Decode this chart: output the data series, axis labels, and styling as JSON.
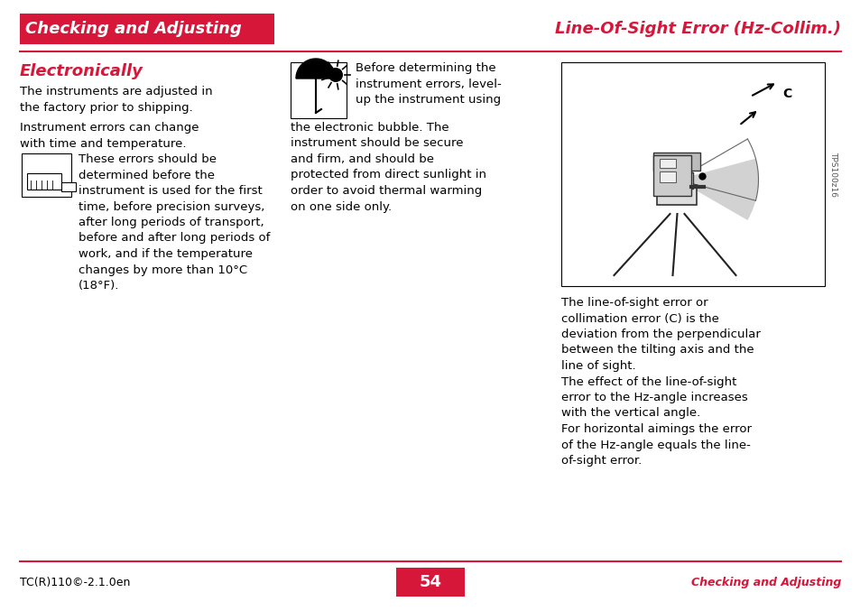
{
  "bg_color": "#ffffff",
  "header_bg_color": "#d6173a",
  "header_text_color": "#ffffff",
  "header_left_text": "Checking and Adjusting",
  "header_right_text": "Line-Of-Sight Error (Hz-Collim.)",
  "header_right_color": "#d6173a",
  "footer_left_text": "TC(R)110©-2.1.0en",
  "footer_center_text": "54",
  "footer_center_bg": "#d6173a",
  "footer_center_color": "#ffffff",
  "footer_right_text": "Checking and Adjusting",
  "footer_right_color": "#d6173a",
  "section_title": "Electronically",
  "section_title_color": "#d6173a",
  "separator_color": "#d6173a",
  "left_body1": "The instruments are adjusted in\nthe factory prior to shipping.",
  "left_body2": "Instrument errors can change\nwith time and temperature.",
  "left_note": "These errors should be\ndetermined before the\ninstrument is used for the first\ntime, before precision surveys,\nafter long periods of transport,\nbefore and after long periods of\nwork, and if the temperature\nchanges by more than 10°C\n(18°F).",
  "mid_text": "Before determining the\ninstrument errors, level-\nup the instrument using\nthe electronic bubble. The\ninstrument should be secure\nand firm, and should be\nprotected from direct sunlight in\norder to avoid thermal warming\non one side only.",
  "right_text": "The line-of-sight error or\ncollimation error (C) is the\ndeviation from the perpendicular\nbetween the tilting axis and the\nline of sight.\nThe effect of the line-of-sight\nerror to the Hz-angle increases\nwith the vertical angle.\nFor horizontal aimings the error\nof the Hz-angle equals the line-\nof-sight error.",
  "tps_label": "TPS100z16",
  "font_body": 9.5,
  "font_header": 13,
  "font_section": 13,
  "font_footer": 9
}
